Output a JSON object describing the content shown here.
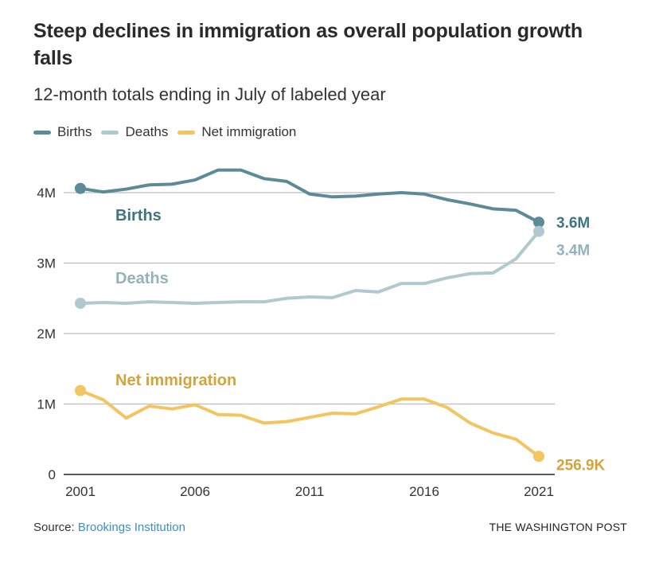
{
  "header": {
    "title": "Steep declines in immigration as overall population growth falls",
    "subtitle": "12-month totals ending in July of labeled year"
  },
  "legend": [
    {
      "label": "Births",
      "color": "#5a8b96"
    },
    {
      "label": "Deaths",
      "color": "#b0c8cf"
    },
    {
      "label": "Net immigration",
      "color": "#f2c560"
    }
  ],
  "footer": {
    "source_prefix": "Source: ",
    "source_link": "Brookings Institution",
    "credit": "THE WASHINGTON POST"
  },
  "chart_data": {
    "type": "line",
    "title": "Steep declines in immigration as overall population growth falls",
    "subtitle": "12-month totals ending in July of labeled year",
    "xlabel": "",
    "ylabel": "",
    "x": [
      2001,
      2002,
      2003,
      2004,
      2005,
      2006,
      2007,
      2008,
      2009,
      2010,
      2011,
      2012,
      2013,
      2014,
      2015,
      2016,
      2017,
      2018,
      2019,
      2020,
      2021
    ],
    "xlim": [
      2001,
      2021
    ],
    "ylim": [
      0,
      4
    ],
    "x_ticks": [
      2001,
      2006,
      2011,
      2016,
      2021
    ],
    "x_tick_labels": [
      "2001",
      "2006",
      "2011",
      "2016",
      "2021"
    ],
    "y_ticks": [
      0,
      1,
      2,
      3,
      4
    ],
    "y_tick_labels": [
      "0",
      "1M",
      "2M",
      "3M",
      "4M"
    ],
    "y_units": "millions",
    "grid": true,
    "legend_position": "top-left",
    "series": [
      {
        "name": "Births",
        "color": "#5a8b96",
        "label_color": "#3f7580",
        "inline_label": "Births",
        "end_label": "3.6M",
        "values": [
          4.06,
          4.01,
          4.05,
          4.11,
          4.12,
          4.18,
          4.32,
          4.32,
          4.2,
          4.16,
          3.98,
          3.94,
          3.95,
          3.98,
          4.0,
          3.98,
          3.9,
          3.84,
          3.77,
          3.75,
          3.58
        ]
      },
      {
        "name": "Deaths",
        "color": "#b0c8cf",
        "label_color": "#93b2ba",
        "inline_label": "Deaths",
        "end_label": "3.4M",
        "values": [
          2.43,
          2.44,
          2.43,
          2.45,
          2.44,
          2.43,
          2.44,
          2.45,
          2.45,
          2.5,
          2.52,
          2.51,
          2.61,
          2.59,
          2.71,
          2.71,
          2.79,
          2.85,
          2.86,
          3.06,
          3.45
        ]
      },
      {
        "name": "Net immigration",
        "color": "#f2c560",
        "label_color": "#d4a43a",
        "inline_label": "Net immigration",
        "end_label": "256.9K",
        "values": [
          1.19,
          1.06,
          0.8,
          0.97,
          0.93,
          0.99,
          0.85,
          0.84,
          0.73,
          0.75,
          0.81,
          0.87,
          0.86,
          0.96,
          1.07,
          1.07,
          0.95,
          0.73,
          0.59,
          0.5,
          0.257
        ]
      }
    ]
  }
}
